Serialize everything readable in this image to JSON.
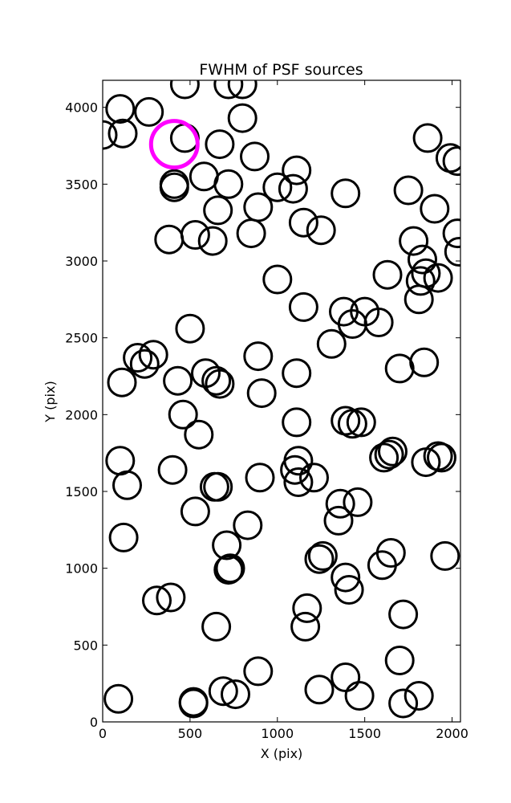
{
  "chart_data": {
    "type": "scatter",
    "title": "FWHM of PSF sources",
    "xlabel": "X (pix)",
    "ylabel": "Y (pix)",
    "xlim": [
      0,
      2048
    ],
    "ylim": [
      0,
      4176
    ],
    "xticks": [
      0,
      500,
      1000,
      1500,
      2000
    ],
    "yticks": [
      0,
      500,
      1000,
      1500,
      2000,
      2500,
      3000,
      3500,
      4000
    ],
    "grid": false,
    "marker": "open-circle",
    "marker_color": "#000000",
    "highlight_color": "#ff00ff",
    "series": [
      {
        "points": [
          [
            100,
            3990
          ],
          [
            265,
            3970
          ],
          [
            470,
            4150
          ],
          [
            720,
            4150
          ],
          [
            800,
            4150
          ],
          [
            115,
            3830
          ],
          [
            0,
            3820
          ],
          [
            800,
            3930
          ],
          [
            470,
            3800
          ],
          [
            670,
            3760
          ],
          [
            870,
            3680
          ],
          [
            580,
            3550
          ],
          [
            720,
            3500
          ],
          [
            1110,
            3590
          ],
          [
            1000,
            3480
          ],
          [
            1090,
            3470
          ],
          [
            410,
            3500
          ],
          [
            410,
            3480
          ],
          [
            1390,
            3440
          ],
          [
            1750,
            3460
          ],
          [
            1860,
            3800
          ],
          [
            1990,
            3670
          ],
          [
            2030,
            3650
          ],
          [
            1900,
            3340
          ],
          [
            2030,
            3180
          ],
          [
            2040,
            3060
          ],
          [
            1780,
            3130
          ],
          [
            660,
            3330
          ],
          [
            890,
            3350
          ],
          [
            1150,
            3250
          ],
          [
            1250,
            3200
          ],
          [
            380,
            3140
          ],
          [
            530,
            3170
          ],
          [
            630,
            3130
          ],
          [
            850,
            3180
          ],
          [
            1630,
            2910
          ],
          [
            1830,
            3010
          ],
          [
            1850,
            2920
          ],
          [
            1920,
            2890
          ],
          [
            1820,
            2870
          ],
          [
            1810,
            2750
          ],
          [
            1000,
            2880
          ],
          [
            1150,
            2700
          ],
          [
            1380,
            2670
          ],
          [
            1500,
            2670
          ],
          [
            1430,
            2590
          ],
          [
            1580,
            2600
          ],
          [
            500,
            2560
          ],
          [
            1310,
            2460
          ],
          [
            890,
            2380
          ],
          [
            290,
            2390
          ],
          [
            200,
            2370
          ],
          [
            240,
            2330
          ],
          [
            110,
            2210
          ],
          [
            430,
            2220
          ],
          [
            590,
            2270
          ],
          [
            650,
            2220
          ],
          [
            670,
            2200
          ],
          [
            1110,
            2270
          ],
          [
            910,
            2140
          ],
          [
            1700,
            2300
          ],
          [
            1840,
            2340
          ],
          [
            460,
            2000
          ],
          [
            550,
            1870
          ],
          [
            1110,
            1950
          ],
          [
            1390,
            1960
          ],
          [
            1430,
            1940
          ],
          [
            1480,
            1950
          ],
          [
            1610,
            1720
          ],
          [
            1640,
            1740
          ],
          [
            1660,
            1760
          ],
          [
            1850,
            1690
          ],
          [
            1920,
            1730
          ],
          [
            1940,
            1720
          ],
          [
            100,
            1700
          ],
          [
            140,
            1540
          ],
          [
            400,
            1640
          ],
          [
            660,
            1530
          ],
          [
            640,
            1530
          ],
          [
            900,
            1590
          ],
          [
            1120,
            1700
          ],
          [
            1100,
            1640
          ],
          [
            1120,
            1560
          ],
          [
            1210,
            1590
          ],
          [
            530,
            1370
          ],
          [
            830,
            1280
          ],
          [
            1360,
            1420
          ],
          [
            1460,
            1430
          ],
          [
            1350,
            1310
          ],
          [
            120,
            1200
          ],
          [
            710,
            1150
          ],
          [
            730,
            1000
          ],
          [
            720,
            990
          ],
          [
            1260,
            1080
          ],
          [
            1240,
            1060
          ],
          [
            1600,
            1020
          ],
          [
            1650,
            1100
          ],
          [
            1960,
            1080
          ],
          [
            310,
            790
          ],
          [
            390,
            810
          ],
          [
            650,
            620
          ],
          [
            1170,
            740
          ],
          [
            1160,
            620
          ],
          [
            1390,
            940
          ],
          [
            1410,
            860
          ],
          [
            1720,
            700
          ],
          [
            1700,
            400
          ],
          [
            890,
            330
          ],
          [
            690,
            200
          ],
          [
            760,
            180
          ],
          [
            520,
            130
          ],
          [
            520,
            120
          ],
          [
            90,
            150
          ],
          [
            1240,
            210
          ],
          [
            1390,
            290
          ],
          [
            1470,
            170
          ],
          [
            1720,
            120
          ],
          [
            1810,
            170
          ]
        ]
      }
    ],
    "highlight": [
      [
        410,
        3760
      ]
    ]
  }
}
